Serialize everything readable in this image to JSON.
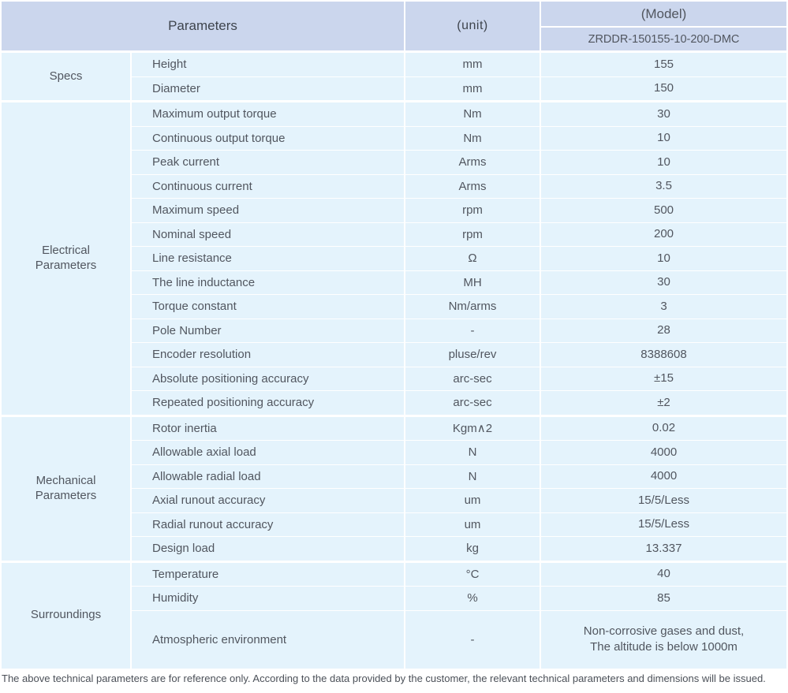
{
  "table": {
    "header": {
      "parameters": "Parameters",
      "unit": "(unit)",
      "model": "(Model)",
      "model_number": "ZRDDR-150155-10-200-DMC"
    },
    "sections": [
      {
        "category": "Specs",
        "rows": [
          {
            "name": "Height",
            "unit": "mm",
            "value": "155"
          },
          {
            "name": "Diameter",
            "unit": "mm",
            "value": "150"
          }
        ]
      },
      {
        "category": "Electrical\nParameters",
        "rows": [
          {
            "name": "Maximum output torque",
            "unit": "Nm",
            "value": "30"
          },
          {
            "name": "Continuous output torque",
            "unit": "Nm",
            "value": "10"
          },
          {
            "name": "Peak current",
            "unit": "Arms",
            "value": "10"
          },
          {
            "name": "Continuous current",
            "unit": "Arms",
            "value": "3.5"
          },
          {
            "name": "Maximum speed",
            "unit": "rpm",
            "value": "500"
          },
          {
            "name": "Nominal speed",
            "unit": "rpm",
            "value": "200"
          },
          {
            "name": "Line resistance",
            "unit": "Ω",
            "value": "10"
          },
          {
            "name": "The line inductance",
            "unit": "MH",
            "value": "30"
          },
          {
            "name": "Torque constant",
            "unit": "Nm/arms",
            "value": "3"
          },
          {
            "name": "Pole Number",
            "unit": "-",
            "value": "28"
          },
          {
            "name": "Encoder resolution",
            "unit": "pluse/rev",
            "value": "8388608"
          },
          {
            "name": "Absolute positioning accuracy",
            "unit": "arc-sec",
            "value": "±15"
          },
          {
            "name": "Repeated positioning accuracy",
            "unit": "arc-sec",
            "value": "±2"
          }
        ]
      },
      {
        "category": "Mechanical\nParameters",
        "rows": [
          {
            "name": "Rotor inertia",
            "unit": "Kgm∧2",
            "value": "0.02"
          },
          {
            "name": "Allowable axial load",
            "unit": "N",
            "value": "4000"
          },
          {
            "name": "Allowable radial load",
            "unit": "N",
            "value": "4000"
          },
          {
            "name": "Axial runout accuracy",
            "unit": "um",
            "value": "15/5/Less"
          },
          {
            "name": "Radial runout accuracy",
            "unit": "um",
            "value": "15/5/Less"
          },
          {
            "name": "Design load",
            "unit": "kg",
            "value": "13.337"
          }
        ]
      },
      {
        "category": "Surroundings",
        "rows": [
          {
            "name": "Temperature",
            "unit": "°C",
            "value": "40"
          },
          {
            "name": "Humidity",
            "unit": "%",
            "value": "85"
          },
          {
            "name": "Atmospheric environment",
            "unit": "-",
            "value": "Non-corrosive gases and dust,\nThe altitude is below 1000m",
            "tall": true
          }
        ]
      }
    ]
  },
  "footer": {
    "note": "The above technical parameters are for reference only. According to the data provided by the customer, the relevant technical parameters and dimensions will be issued."
  },
  "colors": {
    "header_bg": "#cbd6ed",
    "body_bg": "#e4f3fc",
    "header_text": "#3e444d",
    "body_text": "#51565f"
  }
}
